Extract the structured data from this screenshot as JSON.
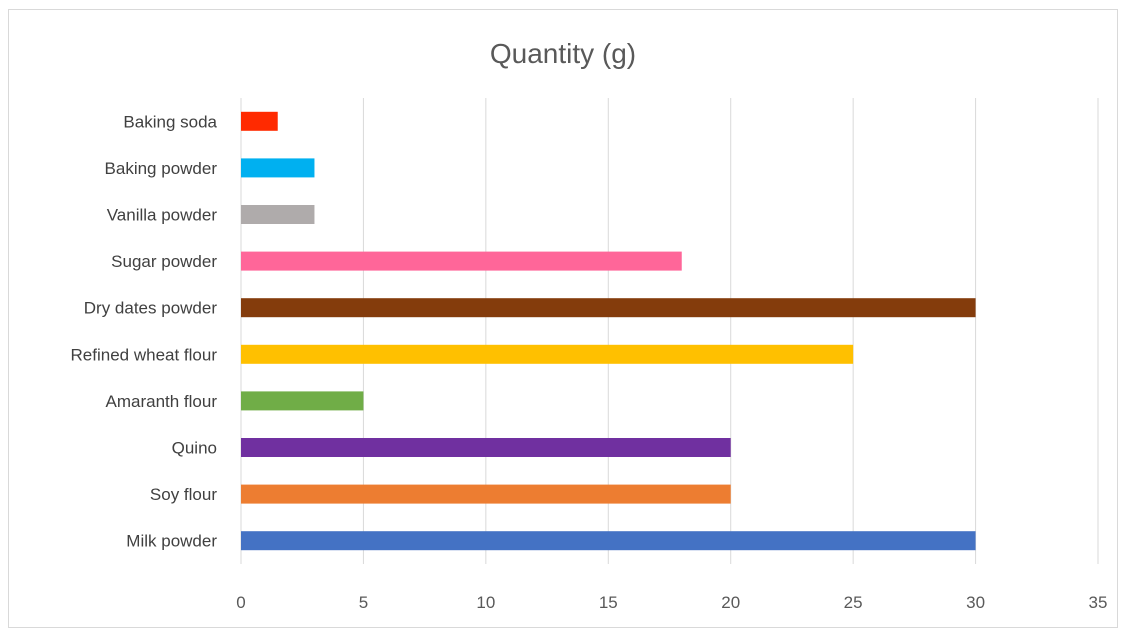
{
  "chart_data": {
    "type": "bar",
    "orientation": "horizontal",
    "title": "Quantity (g)",
    "xlabel": "",
    "ylabel": "",
    "xlim": [
      0,
      35
    ],
    "x_ticks": [
      0,
      5,
      10,
      15,
      20,
      25,
      30,
      35
    ],
    "grid": "vertical",
    "legend": "none",
    "categories": [
      "Baking soda",
      "Baking powder",
      "Vanilla powder",
      "Sugar powder",
      "Dry dates powder",
      "Refined wheat flour",
      "Amaranth flour",
      "Quino",
      "Soy flour",
      "Milk powder"
    ],
    "values": [
      1.5,
      3,
      3,
      18,
      30,
      25,
      5,
      20,
      20,
      30
    ],
    "colors": [
      "#ff2a00",
      "#00b0f0",
      "#afabab",
      "#ff6699",
      "#843c0c",
      "#ffc000",
      "#70ad47",
      "#7030a0",
      "#ed7d31",
      "#4472c4"
    ]
  }
}
